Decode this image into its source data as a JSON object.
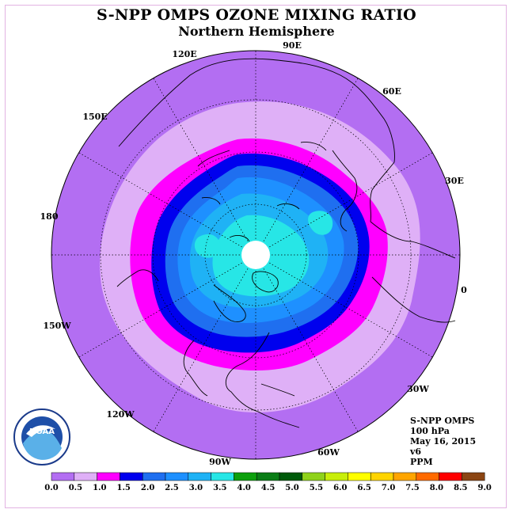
{
  "title": "S-NPP OMPS OZONE MIXING RATIO",
  "subtitle": "Northern Hemisphere",
  "info": {
    "instrument": "S-NPP OMPS",
    "level": "100 hPa",
    "date": "May 16, 2015",
    "version": "v6",
    "units": "PPM"
  },
  "longitude_labels": [
    "90E",
    "60E",
    "30E",
    "0",
    "30W",
    "60W",
    "90W",
    "120W",
    "150W",
    "180",
    "150E",
    "120E"
  ],
  "colorbar": {
    "ticks": [
      "0.0",
      "0.5",
      "1.0",
      "1.5",
      "2.0",
      "2.5",
      "3.0",
      "3.5",
      "4.0",
      "4.5",
      "5.0",
      "5.5",
      "6.0",
      "6.5",
      "7.0",
      "7.5",
      "8.0",
      "8.5",
      "9.0"
    ],
    "colors": [
      "#b36ef2",
      "#dfb0f7",
      "#ff00ff",
      "#0000ee",
      "#1f6ff0",
      "#1e90ff",
      "#1fb2f5",
      "#27e6e6",
      "#0da00d",
      "#0a7d16",
      "#005a0a",
      "#8fd21a",
      "#c8ee0a",
      "#ffff00",
      "#ffd400",
      "#ffa500",
      "#ff6a00",
      "#ff0000",
      "#8b4513"
    ]
  },
  "map_colors": {
    "outer": "#b36ef2",
    "light": "#dfb0f7",
    "magenta": "#ff00ff",
    "dark_blue": "#0000ee",
    "mid_blue": "#1f6ff0",
    "blue": "#1e90ff",
    "light_blue": "#1fb2f5",
    "cyan": "#27e6e6",
    "no_data": "#ffffff"
  },
  "logo_text": "NOAA"
}
